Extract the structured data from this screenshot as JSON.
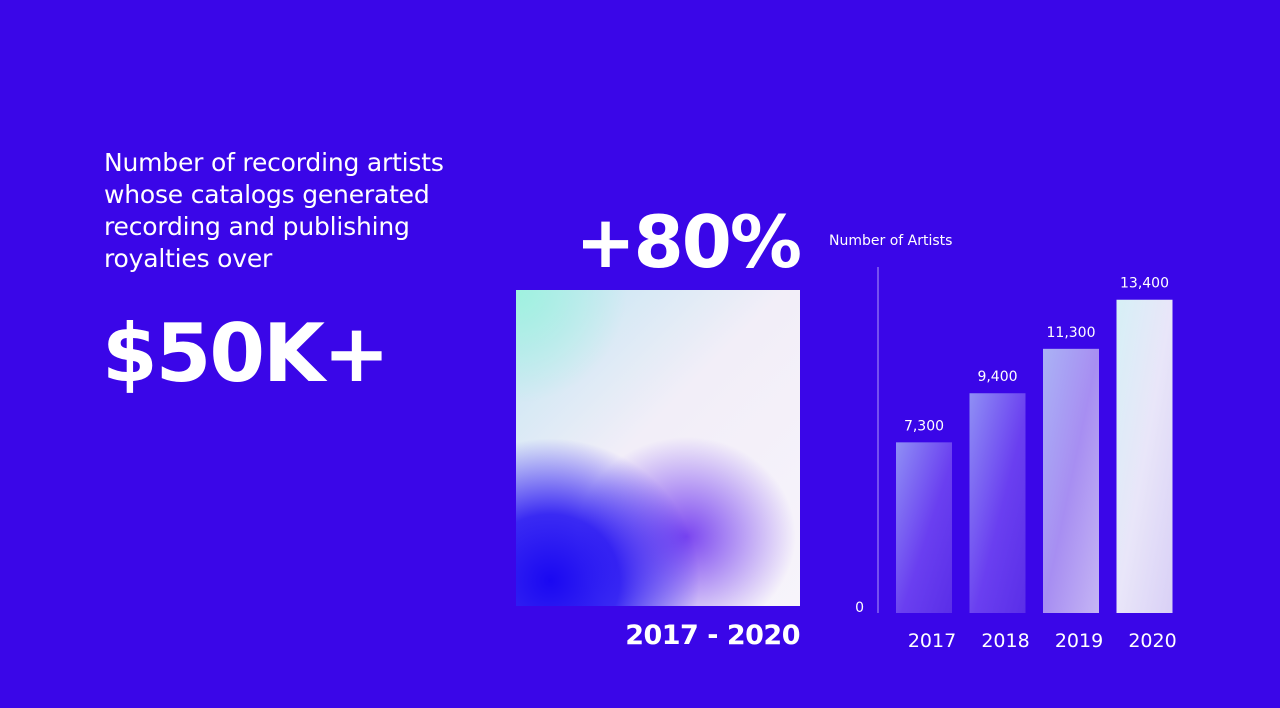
{
  "intro_text": "Number of recording artists whose catalogs generated recording and publishing royalties over",
  "headline_value": "$50K+",
  "growth_value": "+80%",
  "period_label": "2017 - 2020",
  "colors": {
    "background": "#3a06e8",
    "text": "#ffffff"
  },
  "chart_data": {
    "type": "bar",
    "title": "",
    "xlabel": "",
    "ylabel": "Number of Artists",
    "categories": [
      "2017",
      "2018",
      "2019",
      "2020"
    ],
    "values": [
      7300,
      9400,
      11300,
      13400
    ],
    "value_labels": [
      "7,300",
      "9,400",
      "11,300",
      "13,400"
    ],
    "ylim": [
      0,
      14800
    ],
    "y_ticks": [
      "0"
    ],
    "grid": false,
    "legend": "none"
  }
}
